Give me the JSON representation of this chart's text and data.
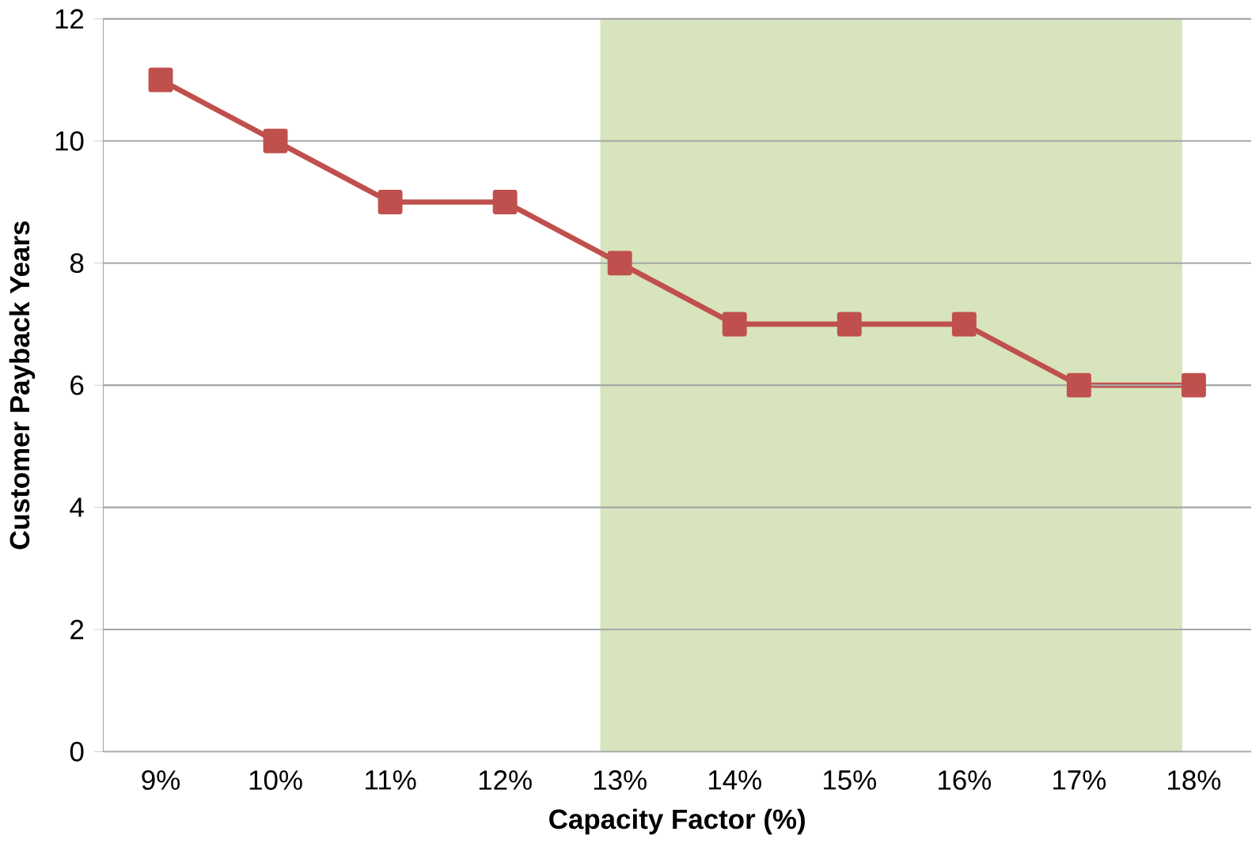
{
  "chart_data": {
    "type": "line",
    "xlabel": "Capacity Factor (%)",
    "ylabel": "Customer Payback Years",
    "x": [
      9,
      10,
      11,
      12,
      13,
      14,
      15,
      16,
      17,
      18
    ],
    "series": [
      {
        "color": "#c0504d",
        "values": [
          11,
          10,
          9,
          9,
          8,
          7,
          7,
          7,
          6,
          6
        ]
      }
    ],
    "xlim": [
      8.5,
      18.5
    ],
    "xticks": [
      {
        "value": 9,
        "label": "9%"
      },
      {
        "value": 10,
        "label": "10%"
      },
      {
        "value": 11,
        "label": "11%"
      },
      {
        "value": 12,
        "label": "12%"
      },
      {
        "value": 13,
        "label": "13%"
      },
      {
        "value": 14,
        "label": "14%"
      },
      {
        "value": 15,
        "label": "15%"
      },
      {
        "value": 16,
        "label": "16%"
      },
      {
        "value": 17,
        "label": "17%"
      },
      {
        "value": 18,
        "label": "18%"
      }
    ],
    "ylim": [
      0,
      12
    ],
    "yticks": [
      0,
      2,
      4,
      6,
      8,
      10,
      12
    ],
    "bands": [
      {
        "axis": "x",
        "from": 12.83,
        "to": 17.9,
        "color": "#d7e4bd"
      }
    ],
    "grid": "y",
    "marker": "square",
    "line_style": "solid"
  }
}
